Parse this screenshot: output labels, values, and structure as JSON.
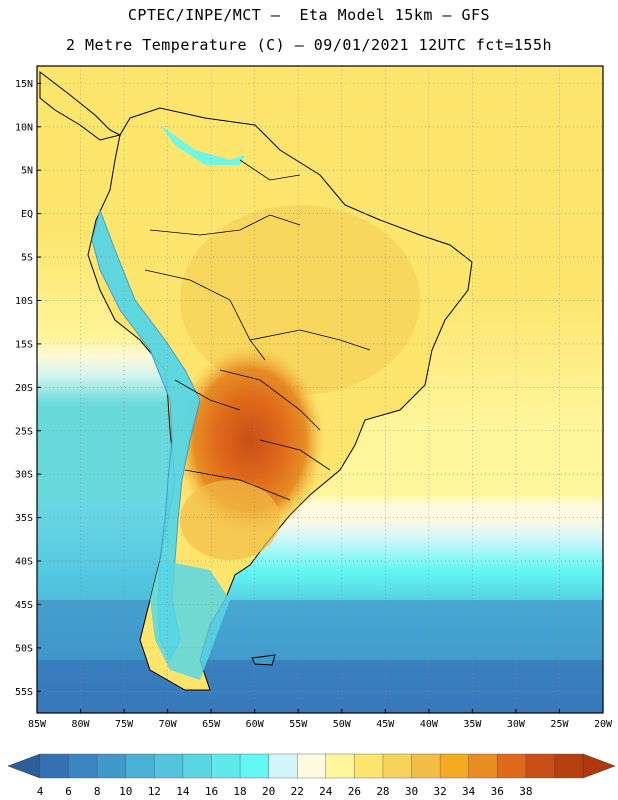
{
  "header": {
    "line1": "CPTEC/INPE/MCT –  Eta Model 15km – GFS",
    "line2": "2 Metre Temperature (C) – 09/01/2021 12UTC fct=155h"
  },
  "map": {
    "lon_range": [
      -85,
      -20
    ],
    "lat_range": [
      -57.5,
      17
    ],
    "lat_ticks": [
      "15N",
      "10N",
      "5N",
      "EQ",
      "5S",
      "10S",
      "15S",
      "20S",
      "25S",
      "30S",
      "35S",
      "40S",
      "45S",
      "50S",
      "55S"
    ],
    "lon_ticks": [
      "85W",
      "80W",
      "75W",
      "70W",
      "65W",
      "60W",
      "55W",
      "50W",
      "45W",
      "40W",
      "35W",
      "30W",
      "25W",
      "20W"
    ]
  },
  "colorbar": {
    "labels": [
      "4",
      "6",
      "8",
      "10",
      "12",
      "14",
      "16",
      "18",
      "20",
      "22",
      "24",
      "26",
      "28",
      "30",
      "32",
      "34",
      "36",
      "38"
    ],
    "colors": [
      "#3570b5",
      "#3a85c2",
      "#3f9ac9",
      "#49b0d6",
      "#52c4de",
      "#58d6e4",
      "#5fe9ea",
      "#62f7f3",
      "#d2f6fb",
      "#fffbe0",
      "#fff59a",
      "#fde56e",
      "#f8d35a",
      "#f2be46",
      "#f4aa22",
      "#e78d24",
      "#e06a1a",
      "#c94f16",
      "#b7410e"
    ],
    "under_color": "#2b5f9c",
    "over_color": "#b03a0c"
  }
}
